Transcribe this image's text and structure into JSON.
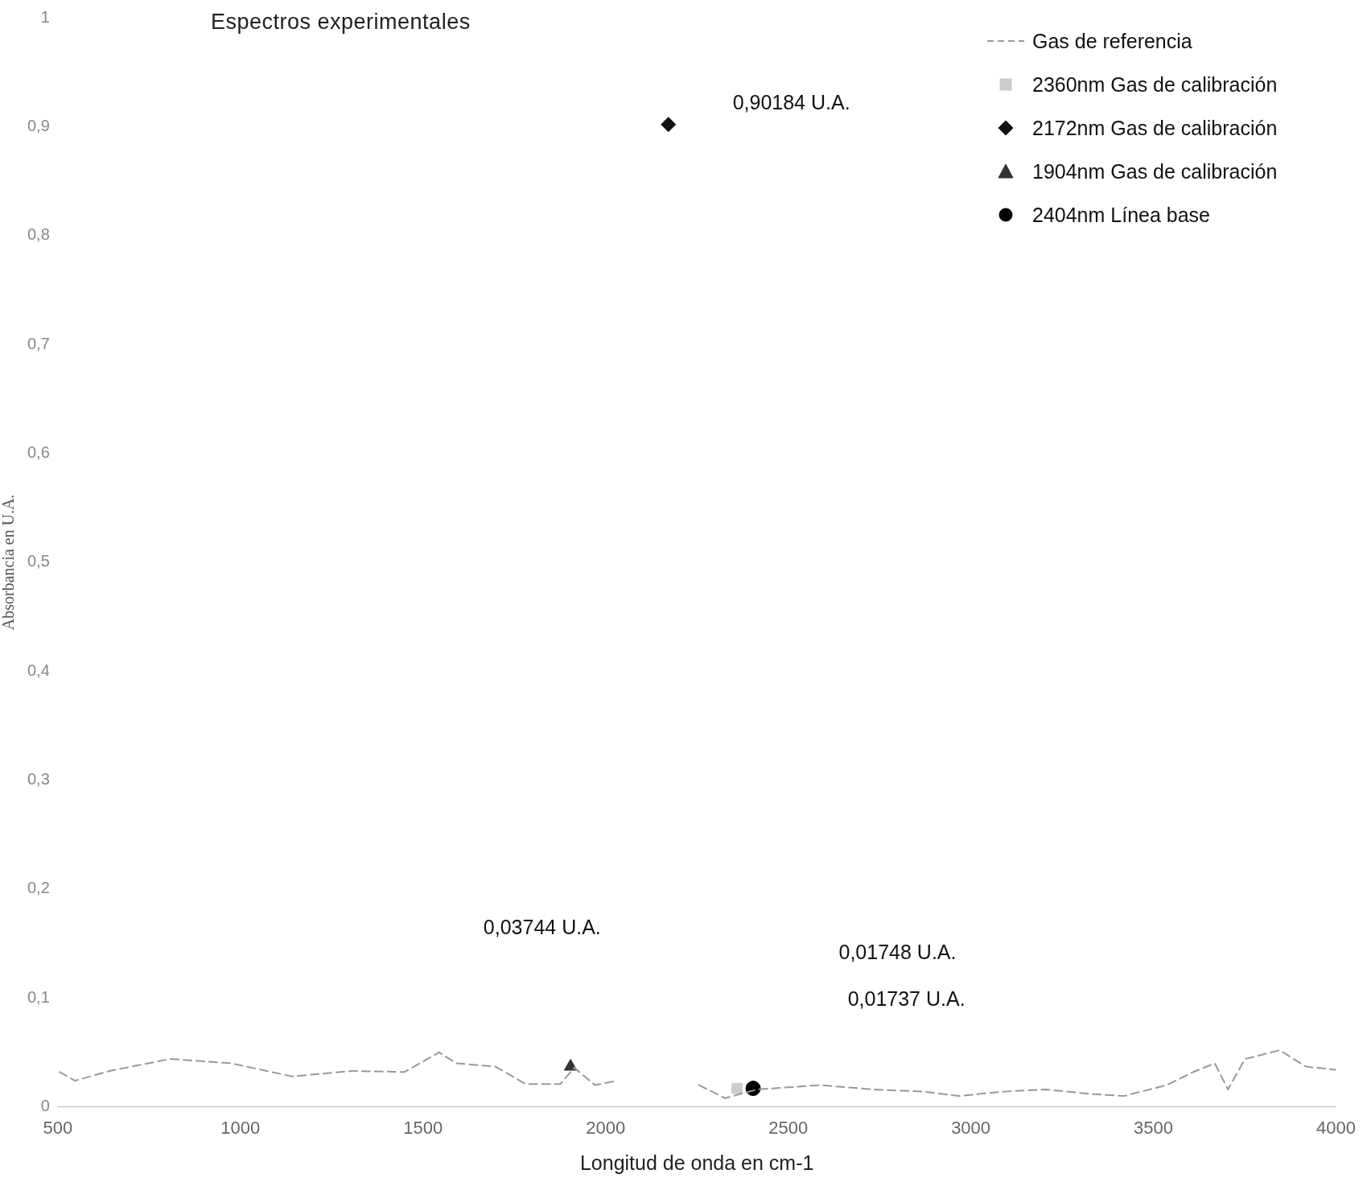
{
  "chart_data": {
    "type": "line",
    "title": "Espectros experimentales",
    "xlabel": "Longitud de onda en cm-1",
    "ylabel": "Absorbancia en U.A.",
    "xlim": [
      500,
      4000
    ],
    "xticks": [
      500,
      1000,
      1500,
      2000,
      2500,
      3000,
      3500,
      4000
    ],
    "ylim": [
      0,
      1
    ],
    "yticks": [
      0,
      {
        "value": 0.1,
        "label": "0,1"
      },
      {
        "value": 0.2,
        "label": "0,2"
      },
      {
        "value": 0.3,
        "label": "0,3"
      },
      {
        "value": 0.4,
        "label": "0,4"
      },
      {
        "value": 0.5,
        "label": "0,5"
      },
      {
        "value": 0.6,
        "label": "0,6"
      },
      {
        "value": 0.7,
        "label": "0,7"
      },
      {
        "value": 0.8,
        "label": "0,8"
      },
      {
        "value": 0.9,
        "label": "0,9"
      },
      1
    ],
    "grid": false,
    "legend": "top right",
    "series": [
      {
        "name": "Gas de referencia",
        "color": "#999999",
        "line_style": "dashed",
        "marker": "none",
        "x": [
          505,
          547,
          642,
          808,
          975,
          1141,
          1307,
          1449,
          1544,
          1592,
          1698,
          1781,
          1876,
          1914,
          1971,
          2031,
          2100,
          2256,
          2327,
          2415,
          2588,
          2730,
          2873,
          2968,
          3087,
          3205,
          3324,
          3419,
          3537,
          3609,
          3668,
          3704,
          3751,
          3846,
          3917,
          4000
        ],
        "values": [
          0.032,
          0.024,
          0.033,
          0.044,
          0.04,
          0.028,
          0.033,
          0.032,
          0.05,
          0.04,
          0.037,
          0.021,
          0.021,
          0.036,
          0.02,
          0.024,
          null,
          0.02,
          0.008,
          0.016,
          0.02,
          0.016,
          0.014,
          0.01,
          0.014,
          0.016,
          0.012,
          0.01,
          0.02,
          0.032,
          0.04,
          0.016,
          0.044,
          0.052,
          0.037,
          0.034
        ]
      },
      {
        "name": "2360nm Gas de calibración",
        "type": "scatter",
        "color": "#cccccc",
        "marker": "square",
        "x": [
          2360
        ],
        "values": [
          0.017
        ]
      },
      {
        "name": "2172nm Gas de calibración",
        "type": "scatter",
        "color": "#111111",
        "marker": "diamond",
        "x": [
          2172
        ],
        "values": [
          0.902
        ]
      },
      {
        "name": "1904nm Gas de calibración",
        "type": "scatter",
        "color": "#333333",
        "marker": "triangle",
        "x": [
          1904
        ],
        "values": [
          0.037
        ]
      },
      {
        "name": "2404nm Línea base",
        "type": "scatter",
        "color": "#000000",
        "marker": "circle",
        "x": [
          2404
        ],
        "values": [
          0.017
        ]
      }
    ],
    "annotations": [
      "0,90184 U.A.",
      "0,03744 U.A.",
      "0,01748 U.A.",
      "0,01737 U.A."
    ]
  }
}
